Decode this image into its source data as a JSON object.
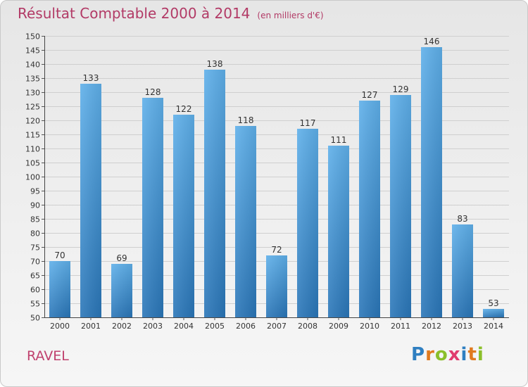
{
  "chart_data": {
    "type": "bar",
    "title": "Résultat Comptable 2000 à 2014",
    "subtitle": "(en milliers d'€)",
    "xlabel": "",
    "ylabel": "",
    "categories": [
      "2000",
      "2001",
      "2002",
      "2003",
      "2004",
      "2005",
      "2006",
      "2007",
      "2008",
      "2009",
      "2010",
      "2011",
      "2012",
      "2013",
      "2014"
    ],
    "values": [
      70,
      133,
      69,
      128,
      122,
      138,
      118,
      72,
      117,
      111,
      127,
      129,
      146,
      83,
      53
    ],
    "ylim": [
      50,
      150
    ],
    "ytick_step": 5,
    "bar_color": "#3a8fd4",
    "grid": true
  },
  "footer": {
    "commune": "RAVEL"
  },
  "logo": {
    "text": "Proxiti",
    "colors": [
      "#2f7fc1",
      "#e07a1f",
      "#8bbf2a",
      "#e03c6e",
      "#2f7fc1",
      "#e07a1f",
      "#8bbf2a"
    ]
  }
}
